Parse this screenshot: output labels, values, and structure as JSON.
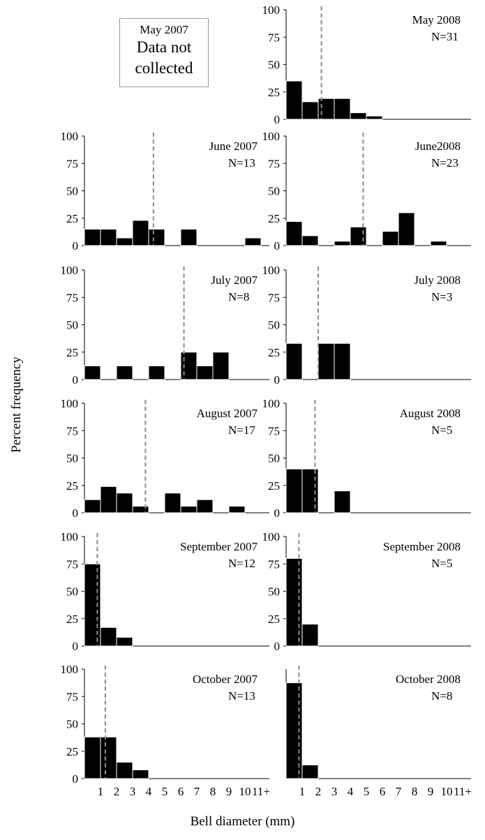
{
  "figure": {
    "ylabel": "Percent frequency",
    "xlabel": "Bell diameter (mm)",
    "note": {
      "title": "May 2007",
      "text_line1": "Data not",
      "text_line2": "collected"
    }
  },
  "chart_data": [
    {
      "type": "bar",
      "col": 1,
      "row": 0,
      "title": "May 2008",
      "n_label": "N=31",
      "ylim": [
        0,
        100
      ],
      "yticks": [
        0,
        25,
        50,
        75,
        100
      ],
      "xticks": [],
      "values": [
        35,
        16,
        19,
        19,
        6,
        3,
        0,
        0,
        0,
        0,
        0
      ],
      "mean": 2.2
    },
    {
      "type": "bar",
      "col": 0,
      "row": 1,
      "title": "June 2007",
      "n_label": "N=13",
      "ylim": [
        0,
        100
      ],
      "yticks": [
        0,
        25,
        50,
        75,
        100
      ],
      "xticks": [],
      "values": [
        15,
        15,
        7,
        23,
        15,
        0,
        15,
        0,
        0,
        0,
        7
      ],
      "mean": 4.3
    },
    {
      "type": "bar",
      "col": 1,
      "row": 1,
      "title": "June2008",
      "n_label": "N=23",
      "ylim": [
        0,
        100
      ],
      "yticks": [
        0,
        25,
        50,
        75,
        100
      ],
      "xticks": [],
      "values": [
        22,
        9,
        0,
        4,
        17,
        0,
        13,
        30,
        0,
        4,
        0
      ],
      "mean": 4.8
    },
    {
      "type": "bar",
      "col": 0,
      "row": 2,
      "title": "July 2007",
      "n_label": "N=8",
      "ylim": [
        0,
        100
      ],
      "yticks": [
        0,
        25,
        50,
        75,
        100
      ],
      "xticks": [],
      "values": [
        12.5,
        0,
        12.5,
        0,
        12.5,
        0,
        25,
        12.5,
        25,
        0,
        0
      ],
      "mean": 6.2
    },
    {
      "type": "bar",
      "col": 1,
      "row": 2,
      "title": "July 2008",
      "n_label": "N=3",
      "ylim": [
        0,
        100
      ],
      "yticks": [
        0,
        25,
        50,
        75,
        100
      ],
      "xticks": [],
      "values": [
        33,
        0,
        33,
        33,
        0,
        0,
        0,
        0,
        0,
        0,
        0
      ],
      "mean": 2.0
    },
    {
      "type": "bar",
      "col": 0,
      "row": 3,
      "title": "August 2007",
      "n_label": "N=17",
      "ylim": [
        0,
        100
      ],
      "yticks": [
        0,
        25,
        50,
        75,
        100
      ],
      "xticks": [],
      "values": [
        12,
        24,
        18,
        6,
        0,
        18,
        6,
        12,
        0,
        6,
        0
      ],
      "mean": 3.8
    },
    {
      "type": "bar",
      "col": 1,
      "row": 3,
      "title": "August 2008",
      "n_label": "N=5",
      "ylim": [
        0,
        100
      ],
      "yticks": [
        0,
        25,
        50,
        75,
        100
      ],
      "xticks": [],
      "values": [
        40,
        40,
        0,
        20,
        0,
        0,
        0,
        0,
        0,
        0,
        0
      ],
      "mean": 1.8
    },
    {
      "type": "bar",
      "col": 0,
      "row": 4,
      "title": "September 2007",
      "n_label": "N=12",
      "ylim": [
        0,
        100
      ],
      "yticks": [
        0,
        25,
        50,
        75,
        100
      ],
      "xticks": [],
      "values": [
        75,
        17,
        8,
        0,
        0,
        0,
        0,
        0,
        0,
        0,
        0
      ],
      "mean": 0.8
    },
    {
      "type": "bar",
      "col": 1,
      "row": 4,
      "title": "September 2008",
      "n_label": "N=5",
      "ylim": [
        0,
        100
      ],
      "yticks": [
        0,
        25,
        50,
        75,
        100
      ],
      "xticks": [],
      "values": [
        80,
        20,
        0,
        0,
        0,
        0,
        0,
        0,
        0,
        0,
        0
      ],
      "mean": 0.8
    },
    {
      "type": "bar",
      "col": 0,
      "row": 5,
      "title": "October 2007",
      "n_label": "N=13",
      "ylim": [
        0,
        100
      ],
      "yticks": [
        0,
        25,
        50,
        75,
        100
      ],
      "xticks": [
        "1",
        "2",
        "3",
        "4",
        "5",
        "6",
        "7",
        "8",
        "9",
        "10",
        "11+"
      ],
      "values": [
        38,
        38,
        15,
        8,
        0,
        0,
        0,
        0,
        0,
        0,
        0
      ],
      "mean": 1.3
    },
    {
      "type": "bar",
      "col": 1,
      "row": 5,
      "title": "October 2008",
      "n_label": "N=8",
      "ylim": [
        0,
        100
      ],
      "yticks": [],
      "xticks": [
        "1",
        "2",
        "3",
        "4",
        "5",
        "6",
        "7",
        "8",
        "9",
        "10",
        "11+"
      ],
      "values": [
        87.5,
        12.5,
        0,
        0,
        0,
        0,
        0,
        0,
        0,
        0,
        0
      ],
      "mean": 0.8
    }
  ]
}
